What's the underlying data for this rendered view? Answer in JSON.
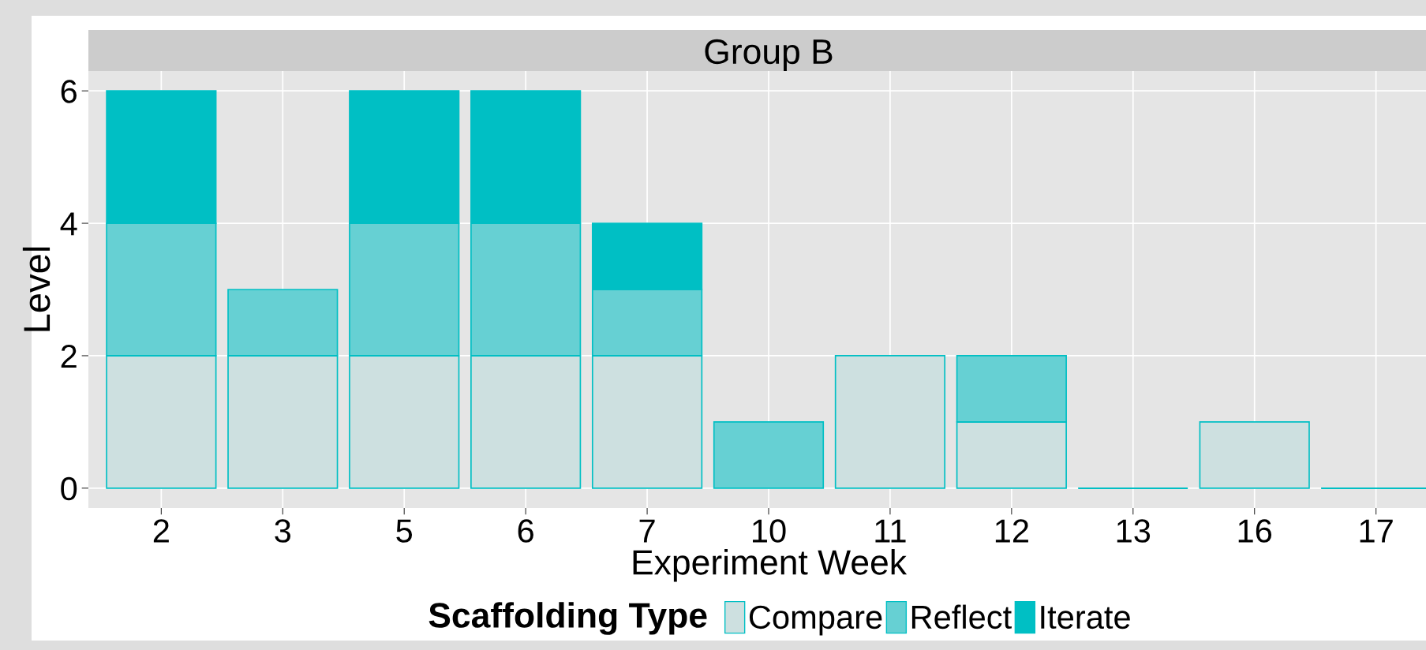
{
  "chart_data": {
    "type": "bar",
    "title": "Group B",
    "xlabel": "Experiment Week",
    "ylabel": "Level",
    "legend_title": "Scaffolding Type",
    "categories": [
      "2",
      "3",
      "5",
      "6",
      "7",
      "10",
      "11",
      "12",
      "13",
      "16",
      "17"
    ],
    "series": [
      {
        "name": "Compare",
        "color": "#cde0e0",
        "values": [
          2,
          2,
          2,
          2,
          2,
          0,
          2,
          1,
          0,
          1,
          0
        ]
      },
      {
        "name": "Reflect",
        "color": "#66d0d3",
        "values": [
          2,
          1,
          2,
          2,
          1,
          1,
          0,
          1,
          0,
          0,
          0
        ]
      },
      {
        "name": "Iterate",
        "color": "#00bfc4",
        "values": [
          2,
          0,
          2,
          2,
          1,
          0,
          0,
          0,
          0,
          0,
          0
        ]
      }
    ],
    "stacked": true,
    "ylim": [
      -0.3,
      6.3
    ],
    "yticks": [
      0,
      2,
      4,
      6
    ],
    "grid": true,
    "legend": "bottom"
  }
}
